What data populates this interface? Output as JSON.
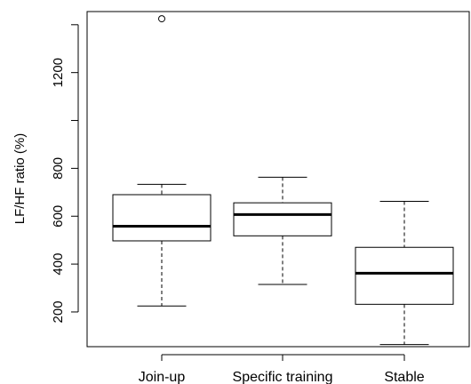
{
  "chart_data": {
    "type": "boxplot",
    "title": "",
    "xlabel": "",
    "ylabel": "LF/HF ratio (%)",
    "ylim": [
      55,
      1455
    ],
    "y_ticks": [
      200,
      400,
      600,
      800,
      1000,
      1200,
      1400
    ],
    "y_tick_labels": [
      "200",
      "400",
      "600",
      "800",
      "",
      "1200",
      ""
    ],
    "categories": [
      "Join-up",
      "Specific training",
      "Stable"
    ],
    "boxes": [
      {
        "category": "Join-up",
        "whisker_low": 225,
        "q1": 497,
        "median": 558,
        "q3": 690,
        "whisker_high": 733,
        "outliers": [
          1425
        ]
      },
      {
        "category": "Specific training",
        "whisker_low": 315,
        "q1": 518,
        "median": 607,
        "q3": 656,
        "whisker_high": 763,
        "outliers": []
      },
      {
        "category": "Stable",
        "whisker_low": 64,
        "q1": 232,
        "median": 362,
        "q3": 470,
        "whisker_high": 662,
        "outliers": []
      }
    ],
    "grid": false,
    "legend": "none",
    "colors": {
      "box_fill": "#ffffff",
      "stroke": "#000000"
    }
  }
}
